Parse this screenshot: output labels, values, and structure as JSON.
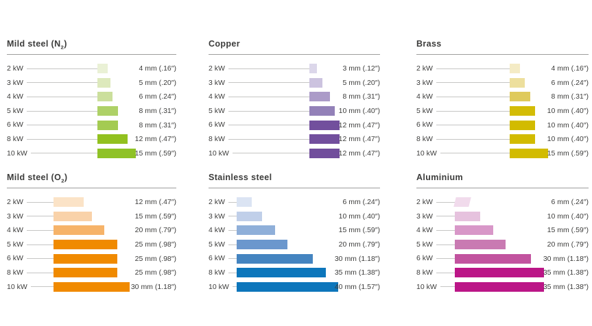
{
  "chart_data": [
    {
      "id": "mild-steel-n2",
      "type": "bar",
      "title": {
        "pre": "Mild steel (N",
        "sub": "2",
        "post": ")"
      },
      "unit": "mm",
      "categories": [
        "2 kW",
        "3 kW",
        "4 kW",
        "5 kW",
        "6 kW",
        "8 kW",
        "10 kW"
      ],
      "values": [
        4,
        5,
        6,
        8,
        8,
        12,
        15
      ],
      "value_labels": [
        "4 mm (.16″)",
        "5 mm (.20″)",
        "6 mm (.24″)",
        "8 mm (.31″)",
        "8 mm (.31″)",
        "12 mm (.47″)",
        "15 mm (.59″)"
      ],
      "bar_colors": [
        "#eaf1d6",
        "#dde9bc",
        "#cbdf9c",
        "#aed167",
        "#a4cb52",
        "#92c11f",
        "#8fc226"
      ]
    },
    {
      "id": "copper",
      "type": "bar",
      "title": {
        "pre": "Copper",
        "sub": "",
        "post": ""
      },
      "unit": "mm",
      "categories": [
        "2 kW",
        "3 kW",
        "4 kW",
        "5 kW",
        "6 kW",
        "8 kW",
        "10 kW"
      ],
      "values": [
        3,
        5,
        8,
        10,
        12,
        12,
        12
      ],
      "value_labels": [
        "3 mm (.12″)",
        "5 mm (.20″)",
        "8 mm (.31″)",
        "10 mm (.40″)",
        "12 mm (.47″)",
        "12 mm (.47″)",
        "12 mm (.47″)"
      ],
      "bar_colors": [
        "#dcd7ea",
        "#ccc3df",
        "#ab9bc8",
        "#9381b8",
        "#724f9d",
        "#724f9d",
        "#714e9c"
      ]
    },
    {
      "id": "brass",
      "type": "bar",
      "title": {
        "pre": "Brass",
        "sub": "",
        "post": ""
      },
      "unit": "mm",
      "categories": [
        "2 kW",
        "3 kW",
        "4 kW",
        "5 kW",
        "6 kW",
        "8 kW",
        "10 kW"
      ],
      "values": [
        4,
        6,
        8,
        10,
        10,
        10,
        15
      ],
      "value_labels": [
        "4 mm (.16″)",
        "6 mm (.24″)",
        "8 mm (.31″)",
        "10 mm (.40″)",
        "10 mm (.40″)",
        "10 mm (.40″)",
        "15 mm (.59″)"
      ],
      "bar_colors": [
        "#f4ebc5",
        "#eddf9d",
        "#dfca5c",
        "#d3bc06",
        "#d2bb00",
        "#d2bb00",
        "#d2bb00"
      ]
    },
    {
      "id": "mild-steel-o2",
      "type": "bar",
      "title": {
        "pre": "Mild steel (O",
        "sub": "2",
        "post": ")"
      },
      "unit": "mm",
      "categories": [
        "2 kW",
        "3 kW",
        "4 kW",
        "5 kW",
        "6 kW",
        "8 kW",
        "10 kW"
      ],
      "values": [
        12,
        15,
        20,
        25,
        25,
        25,
        30
      ],
      "value_labels": [
        "12 mm (.47″)",
        "15 mm (.59″)",
        "20 mm (.79″)",
        "25 mm (.98″)",
        "25 mm (.98″)",
        "25 mm (.98″)",
        "30 mm (1.18″)"
      ],
      "bar_colors": [
        "#fbe3c7",
        "#f9d2a9",
        "#f6b369",
        "#f08a00",
        "#f08a00",
        "#f08a00",
        "#f08a00"
      ]
    },
    {
      "id": "stainless-steel",
      "type": "bar",
      "title": {
        "pre": "Stainless steel",
        "sub": "",
        "post": ""
      },
      "unit": "mm",
      "categories": [
        "2 kW",
        "3 kW",
        "4 kW",
        "5 kW",
        "6 kW",
        "8 kW",
        "10 kW"
      ],
      "values": [
        6,
        10,
        15,
        20,
        30,
        35,
        40
      ],
      "value_labels": [
        "6 mm (.24″)",
        "10 mm (.40″)",
        "15 mm (.59″)",
        "20 mm (.79″)",
        "30 mm (1.18″)",
        "35 mm (1.38″)",
        "40 mm (1.57″)"
      ],
      "bar_colors": [
        "#dbe4f3",
        "#c0cfe9",
        "#8fafd9",
        "#6b97cd",
        "#4484c0",
        "#0d76bb",
        "#0d76bb"
      ]
    },
    {
      "id": "aluminium",
      "type": "bar",
      "title": {
        "pre": "Aluminium",
        "sub": "",
        "post": ""
      },
      "unit": "mm",
      "categories": [
        "2 kW",
        "3 kW",
        "4 kW",
        "5 kW",
        "6 kW",
        "8 kW",
        "10 kW"
      ],
      "values": [
        6,
        10,
        15,
        20,
        30,
        35,
        35
      ],
      "value_labels": [
        "6 mm (.24″)",
        "10 mm (.40″)",
        "15 mm (.59″)",
        "20 mm (.79″)",
        "30 mm (1.18″)",
        "35 mm (1.38″)",
        "35 mm (1.38″)"
      ],
      "bar_colors": [
        "#f1dbec",
        "#e6c2de",
        "#d897c8",
        "#c97ab2",
        "#c2539f",
        "#bb1687",
        "#bb1687"
      ]
    }
  ],
  "styles": {
    "text_color": "#3c3c3b",
    "leader_line_color": "#c5c5c4",
    "title_rule_color": "#9d9d9c",
    "background": "#ffffff"
  }
}
